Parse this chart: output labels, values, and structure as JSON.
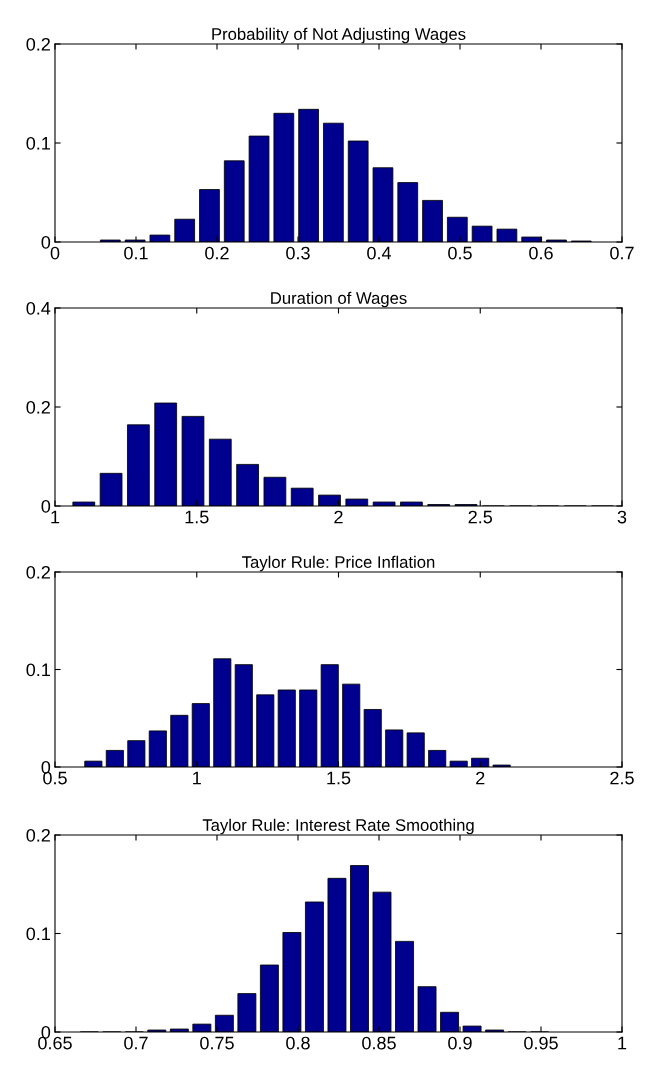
{
  "chart_data": [
    {
      "type": "histogram",
      "title": "Probability of Not Adjusting Wages",
      "color": "#00008f",
      "bins": [
        0.053,
        0.0836,
        0.1142,
        0.1448,
        0.1754,
        0.206,
        0.2366,
        0.2672,
        0.2978,
        0.3284,
        0.359,
        0.3896,
        0.4202,
        0.4508,
        0.4814,
        0.512,
        0.5426,
        0.5732,
        0.6038,
        0.6344,
        0.665
      ],
      "values": [
        0.002,
        0.002,
        0.007,
        0.023,
        0.053,
        0.082,
        0.107,
        0.13,
        0.134,
        0.12,
        0.102,
        0.075,
        0.06,
        0.042,
        0.025,
        0.016,
        0.013,
        0.005,
        0.002,
        0.001
      ],
      "xlim": [
        0,
        0.7
      ],
      "xticks": [
        0,
        0.1,
        0.2,
        0.3,
        0.4,
        0.5,
        0.6,
        0.7
      ],
      "ylim": [
        0,
        0.2
      ],
      "yticks": [
        0,
        0.1,
        0.2
      ]
    },
    {
      "type": "histogram",
      "title": "Duration of Wages",
      "color": "#00008f",
      "bins": [
        1.0534,
        1.1497,
        1.246,
        1.3423,
        1.4386,
        1.5349,
        1.6312,
        1.7275,
        1.8238,
        1.9201,
        2.0164,
        2.1127,
        2.209,
        2.3053,
        2.4016,
        2.4979,
        2.5942,
        2.6905,
        2.7868,
        2.8831,
        2.9794
      ],
      "values": [
        0.008,
        0.066,
        0.164,
        0.208,
        0.181,
        0.135,
        0.084,
        0.058,
        0.036,
        0.022,
        0.014,
        0.008,
        0.008,
        0.003,
        0.003,
        0,
        0,
        0,
        0,
        0
      ],
      "xlim": [
        1,
        3
      ],
      "xticks": [
        1,
        1.5,
        2,
        2.5,
        3
      ],
      "ylim": [
        0,
        0.4
      ],
      "yticks": [
        0,
        0.2,
        0.4
      ]
    },
    {
      "type": "histogram",
      "title": "Taylor Rule: Price Inflation",
      "color": "#00008f",
      "bins": [
        0.5974,
        0.6732,
        0.749,
        0.8248,
        0.9006,
        0.9764,
        1.0522,
        1.128,
        1.2038,
        1.2796,
        1.3554,
        1.4312,
        1.507,
        1.5828,
        1.6586,
        1.7344,
        1.8102,
        1.886,
        1.9618,
        2.0376,
        2.1134
      ],
      "values": [
        0.006,
        0.017,
        0.027,
        0.037,
        0.053,
        0.065,
        0.111,
        0.105,
        0.074,
        0.079,
        0.079,
        0.105,
        0.085,
        0.059,
        0.038,
        0.035,
        0.017,
        0.006,
        0.009,
        0.002
      ],
      "xlim": [
        0.5,
        2.5
      ],
      "xticks": [
        0.5,
        1,
        1.5,
        2,
        2.5
      ],
      "ylim": [
        0,
        0.2
      ],
      "yticks": [
        0,
        0.1,
        0.2
      ]
    },
    {
      "type": "histogram",
      "title": "Taylor Rule: Interest Rate Smoothing",
      "color": "#00008f",
      "bins": [
        0.6642,
        0.6781,
        0.692,
        0.7059,
        0.7198,
        0.7337,
        0.7476,
        0.7615,
        0.7754,
        0.7893,
        0.8032,
        0.8171,
        0.831,
        0.8449,
        0.8588,
        0.8727,
        0.8866,
        0.9005,
        0.9144,
        0.9283,
        0.9422,
        0.9561
      ],
      "values": [
        0,
        0,
        0,
        0.002,
        0.003,
        0.008,
        0.017,
        0.039,
        0.068,
        0.101,
        0.132,
        0.156,
        0.169,
        0.142,
        0.092,
        0.046,
        0.02,
        0.006,
        0.002,
        0,
        0
      ],
      "xlim": [
        0.65,
        1
      ],
      "xticks": [
        0.65,
        0.7,
        0.75,
        0.8,
        0.85,
        0.9,
        0.95,
        1
      ],
      "ylim": [
        0,
        0.2
      ],
      "yticks": [
        0,
        0.1,
        0.2
      ]
    }
  ]
}
